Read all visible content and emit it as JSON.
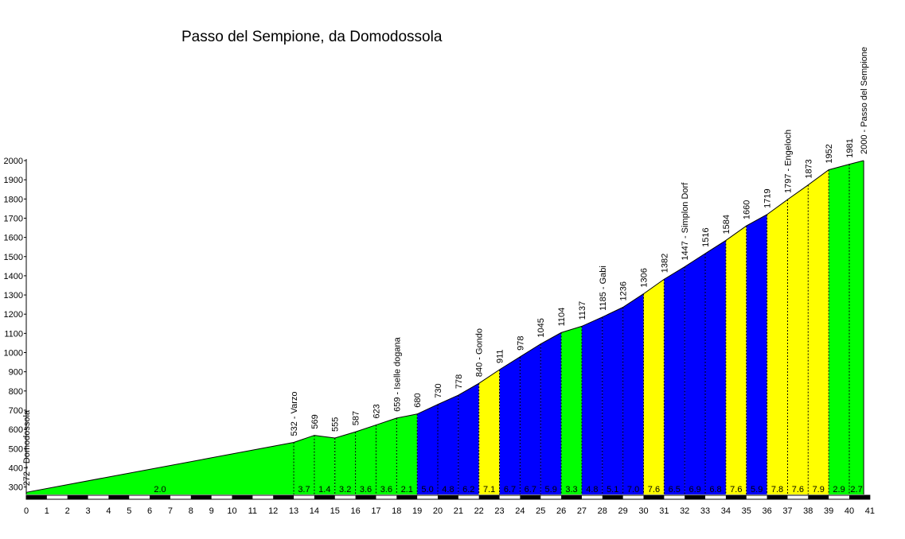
{
  "chart_data": {
    "type": "area",
    "title": "Passo del Sempione, da Domodossola",
    "xlabel": "",
    "ylabel": "",
    "xlim": [
      0,
      41
    ],
    "ylim": [
      250,
      2000
    ],
    "y_ticks": [
      300,
      400,
      500,
      600,
      700,
      800,
      900,
      1000,
      1100,
      1200,
      1300,
      1400,
      1500,
      1600,
      1700,
      1800,
      1900,
      2000
    ],
    "x_ticks": [
      0,
      1,
      2,
      3,
      4,
      5,
      6,
      7,
      8,
      9,
      10,
      11,
      12,
      13,
      14,
      15,
      16,
      17,
      18,
      19,
      20,
      21,
      22,
      23,
      24,
      25,
      26,
      27,
      28,
      29,
      30,
      31,
      32,
      33,
      34,
      35,
      36,
      37,
      38,
      39,
      40,
      41
    ],
    "points": [
      {
        "x": 0,
        "y": 272,
        "label": "272 - Domodossola"
      },
      {
        "x": 13,
        "y": 532,
        "label": "532 - Varzo"
      },
      {
        "x": 14,
        "y": 569,
        "label": "569"
      },
      {
        "x": 15,
        "y": 555,
        "label": "555"
      },
      {
        "x": 16,
        "y": 587,
        "label": "587"
      },
      {
        "x": 17,
        "y": 623,
        "label": "623"
      },
      {
        "x": 18,
        "y": 659,
        "label": "659 - Iselle dogana"
      },
      {
        "x": 19,
        "y": 680,
        "label": "680"
      },
      {
        "x": 20,
        "y": 730,
        "label": "730"
      },
      {
        "x": 21,
        "y": 778,
        "label": "778"
      },
      {
        "x": 22,
        "y": 840,
        "label": "840 - Gondo"
      },
      {
        "x": 23,
        "y": 911,
        "label": "911"
      },
      {
        "x": 24,
        "y": 978,
        "label": "978"
      },
      {
        "x": 25,
        "y": 1045,
        "label": "1045"
      },
      {
        "x": 26,
        "y": 1104,
        "label": "1104"
      },
      {
        "x": 27,
        "y": 1137,
        "label": "1137"
      },
      {
        "x": 28,
        "y": 1185,
        "label": "1185 - Gabi"
      },
      {
        "x": 29,
        "y": 1236,
        "label": "1236"
      },
      {
        "x": 30,
        "y": 1306,
        "label": "1306"
      },
      {
        "x": 31,
        "y": 1382,
        "label": "1382"
      },
      {
        "x": 32,
        "y": 1447,
        "label": "1447 - Simplon Dorf"
      },
      {
        "x": 33,
        "y": 1516,
        "label": "1516"
      },
      {
        "x": 34,
        "y": 1584,
        "label": "1584"
      },
      {
        "x": 35,
        "y": 1660,
        "label": "1660"
      },
      {
        "x": 36,
        "y": 1719,
        "label": "1719"
      },
      {
        "x": 37,
        "y": 1797,
        "label": "1797 - Engeloch"
      },
      {
        "x": 38,
        "y": 1873,
        "label": "1873"
      },
      {
        "x": 39,
        "y": 1952,
        "label": "1952"
      },
      {
        "x": 40,
        "y": 1981,
        "label": "1981"
      },
      {
        "x": 40.7,
        "y": 2000,
        "label": "2000 - Passo del Sempione"
      }
    ],
    "segments": [
      {
        "from": 0,
        "to": 13,
        "gradient": "2.0",
        "color": "#00ff00"
      },
      {
        "from": 13,
        "to": 14,
        "gradient": "3.7",
        "color": "#00ff00"
      },
      {
        "from": 14,
        "to": 15,
        "gradient": "1.4",
        "color": "#00ff00"
      },
      {
        "from": 15,
        "to": 16,
        "gradient": "3.2",
        "color": "#00ff00"
      },
      {
        "from": 16,
        "to": 17,
        "gradient": "3.6",
        "color": "#00ff00"
      },
      {
        "from": 17,
        "to": 18,
        "gradient": "3.6",
        "color": "#00ff00"
      },
      {
        "from": 18,
        "to": 19,
        "gradient": "2.1",
        "color": "#00ff00"
      },
      {
        "from": 19,
        "to": 20,
        "gradient": "5.0",
        "color": "#0000ff"
      },
      {
        "from": 20,
        "to": 21,
        "gradient": "4.8",
        "color": "#0000ff"
      },
      {
        "from": 21,
        "to": 22,
        "gradient": "6.2",
        "color": "#0000ff"
      },
      {
        "from": 22,
        "to": 23,
        "gradient": "7.1",
        "color": "#ffff00"
      },
      {
        "from": 23,
        "to": 24,
        "gradient": "6.7",
        "color": "#0000ff"
      },
      {
        "from": 24,
        "to": 25,
        "gradient": "6.7",
        "color": "#0000ff"
      },
      {
        "from": 25,
        "to": 26,
        "gradient": "5.9",
        "color": "#0000ff"
      },
      {
        "from": 26,
        "to": 27,
        "gradient": "3.3",
        "color": "#00ff00"
      },
      {
        "from": 27,
        "to": 28,
        "gradient": "4.8",
        "color": "#0000ff"
      },
      {
        "from": 28,
        "to": 29,
        "gradient": "5.1",
        "color": "#0000ff"
      },
      {
        "from": 29,
        "to": 30,
        "gradient": "7.0",
        "color": "#0000ff"
      },
      {
        "from": 30,
        "to": 31,
        "gradient": "7.6",
        "color": "#ffff00"
      },
      {
        "from": 31,
        "to": 32,
        "gradient": "6.5",
        "color": "#0000ff"
      },
      {
        "from": 32,
        "to": 33,
        "gradient": "6.9",
        "color": "#0000ff"
      },
      {
        "from": 33,
        "to": 34,
        "gradient": "6.8",
        "color": "#0000ff"
      },
      {
        "from": 34,
        "to": 35,
        "gradient": "7.6",
        "color": "#ffff00"
      },
      {
        "from": 35,
        "to": 36,
        "gradient": "5.9",
        "color": "#0000ff"
      },
      {
        "from": 36,
        "to": 37,
        "gradient": "7.8",
        "color": "#ffff00"
      },
      {
        "from": 37,
        "to": 38,
        "gradient": "7.6",
        "color": "#ffff00"
      },
      {
        "from": 38,
        "to": 39,
        "gradient": "7.9",
        "color": "#ffff00"
      },
      {
        "from": 39,
        "to": 40,
        "gradient": "2.9",
        "color": "#00ff00"
      },
      {
        "from": 40,
        "to": 40.7,
        "gradient": "2.7",
        "color": "#00ff00"
      }
    ],
    "grid": false,
    "legend": "none"
  }
}
